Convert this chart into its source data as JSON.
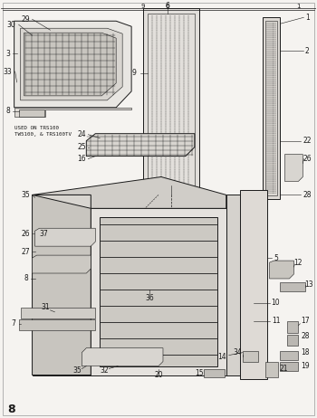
{
  "bg_color": "#f5f3f0",
  "dark": "#1a1a1a",
  "page_number": "8",
  "text_note": "USED ON TRS100\nTW5100, & TRS100TV",
  "figsize": [
    3.5,
    4.62
  ],
  "dpi": 100
}
